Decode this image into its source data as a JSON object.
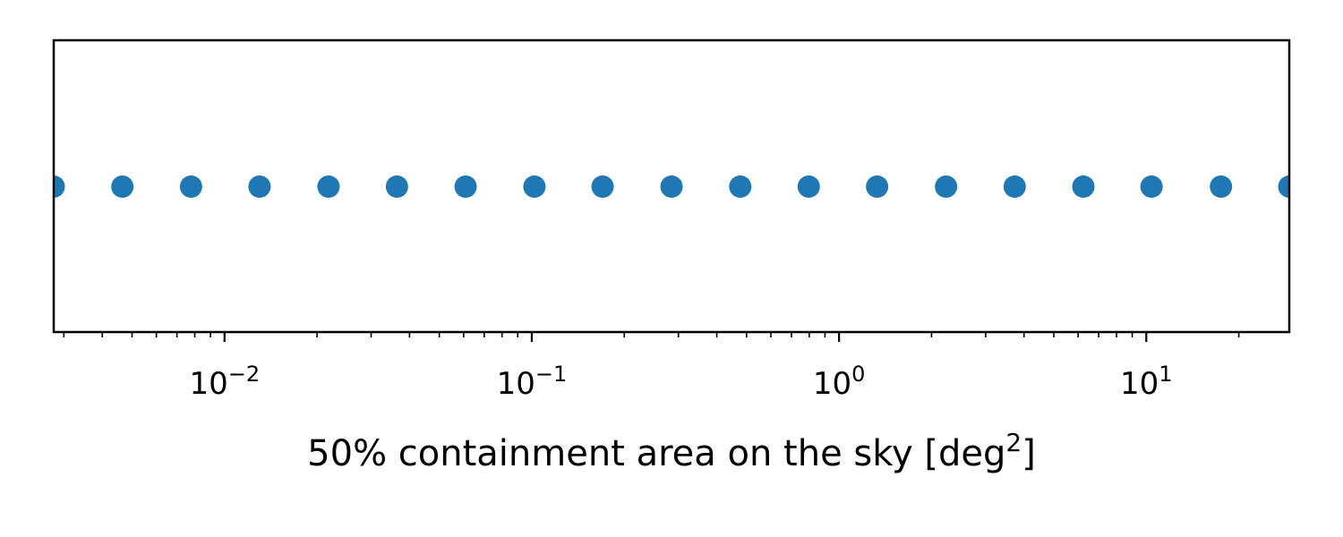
{
  "chart_data": {
    "type": "scatter",
    "xscale": "log",
    "xlim": [
      0.00278,
      29.2
    ],
    "yaxis_visible": false,
    "grid": false,
    "xlabel": {
      "main": "50% containment area on the sky [deg",
      "sup": "2",
      "close": "]"
    },
    "xticks": [
      {
        "value": 0.01,
        "base": "10",
        "exp": "−2"
      },
      {
        "value": 0.1,
        "base": "10",
        "exp": "−1"
      },
      {
        "value": 1,
        "base": "10",
        "exp": "0"
      },
      {
        "value": 10,
        "base": "10",
        "exp": "1"
      }
    ],
    "color": "#1f77b4",
    "series": [
      {
        "x": [
          0.00278,
          0.00465,
          0.00778,
          0.013,
          0.0218,
          0.0364,
          0.0609,
          0.102,
          0.17,
          0.285,
          0.477,
          0.797,
          1.33,
          2.23,
          3.73,
          6.24,
          10.4,
          17.5,
          29.2
        ],
        "y": [
          0,
          0,
          0,
          0,
          0,
          0,
          0,
          0,
          0,
          0,
          0,
          0,
          0,
          0,
          0,
          0,
          0,
          0,
          0
        ]
      }
    ]
  }
}
